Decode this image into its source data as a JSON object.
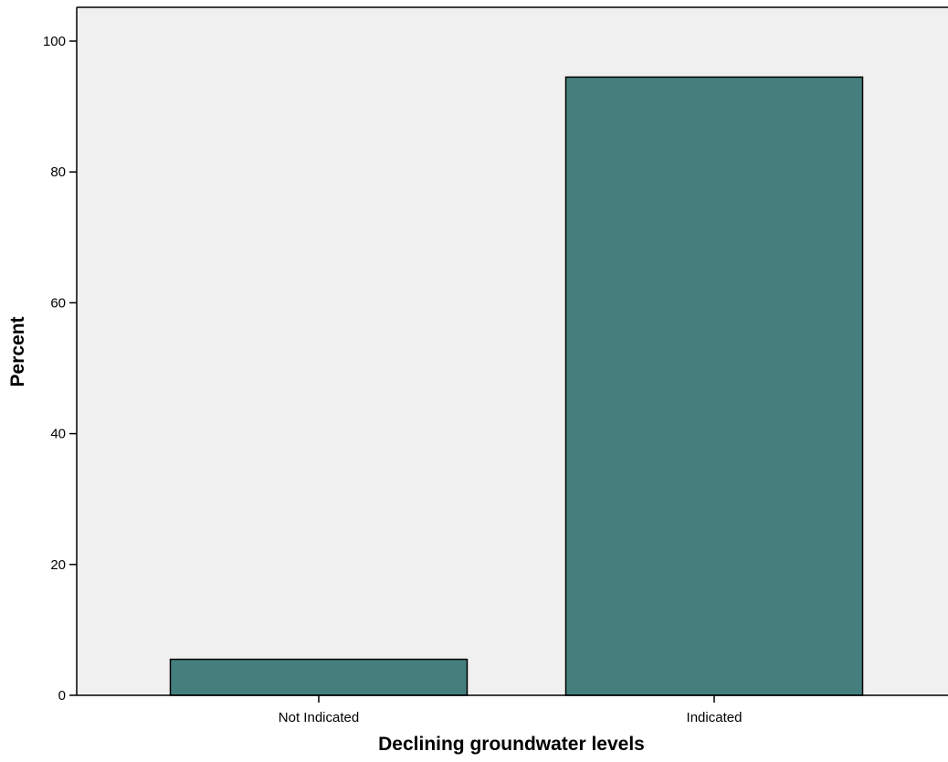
{
  "chart_data": {
    "type": "bar",
    "xlabel": "Declining groundwater levels",
    "ylabel": "Percent",
    "categories": [
      "Not Indicated",
      "Indicated"
    ],
    "values": [
      5.5,
      94.5
    ],
    "ylim": [
      0,
      100
    ],
    "yticks": [
      "0",
      "20",
      "40",
      "60",
      "80",
      "100"
    ],
    "grid": false,
    "legend": "none",
    "colors": {
      "bar_fill": "#447f7e",
      "bar_stroke": "#000000",
      "plot_background": "#f0f0f0",
      "axis": "#000000"
    }
  }
}
